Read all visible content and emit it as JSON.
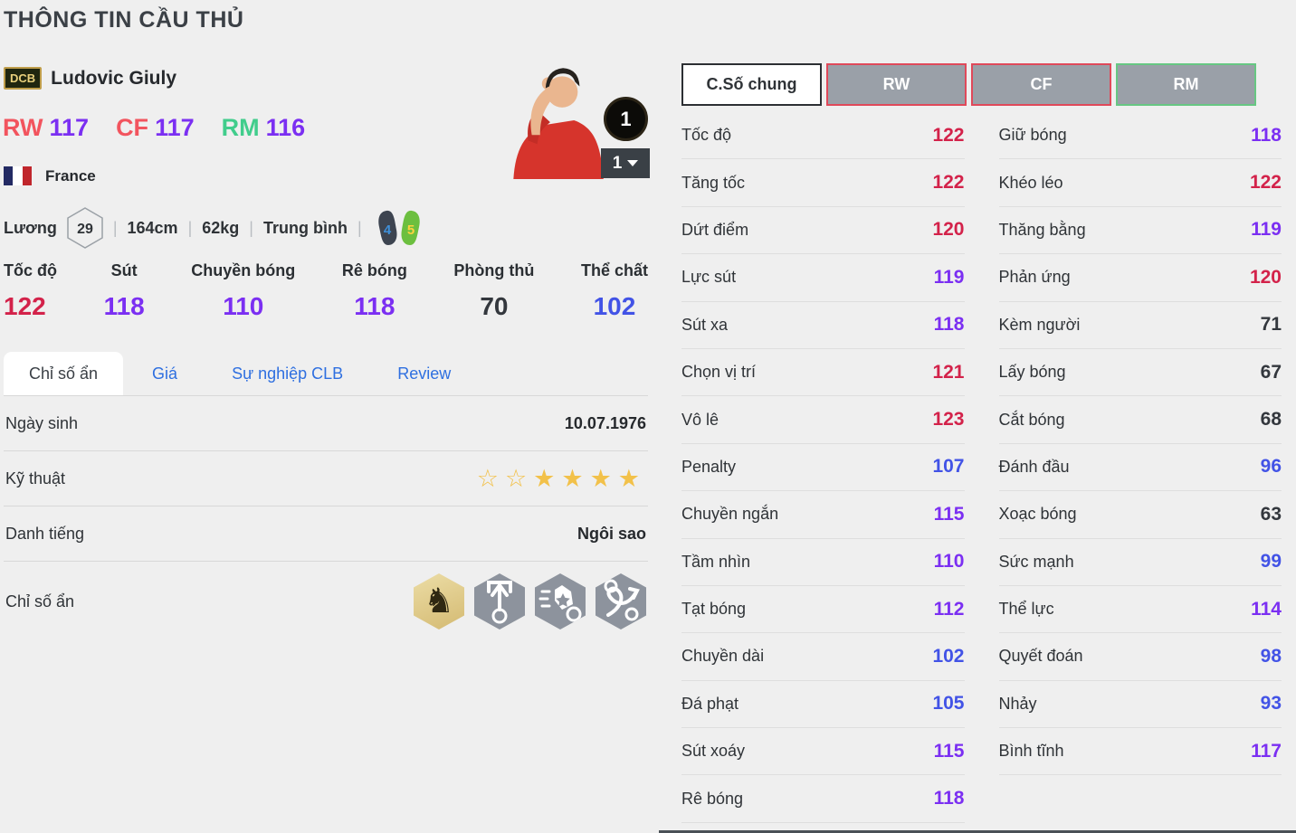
{
  "page": {
    "title": "THÔNG TIN CẦU THỦ"
  },
  "player": {
    "badge": "DCB",
    "name": "Ludovic Giuly",
    "positions": [
      {
        "label": "RW",
        "rating": "117",
        "label_color": "#f2545e"
      },
      {
        "label": "CF",
        "rating": "117",
        "label_color": "#f2545e"
      },
      {
        "label": "RM",
        "rating": "116",
        "label_color": "#41cd8c"
      }
    ],
    "nation": "France",
    "salary_label": "Lương",
    "salary": "29",
    "meta_items": [
      "164cm",
      "62kg",
      "Trung bình"
    ],
    "meta_separator": "|",
    "weak_foot": "4",
    "strong_foot": "5",
    "photo_badge": "1",
    "photo_dropdown": "1"
  },
  "main_stats": [
    {
      "label": "Tốc độ",
      "value": "122"
    },
    {
      "label": "Sút",
      "value": "118"
    },
    {
      "label": "Chuyền bóng",
      "value": "110"
    },
    {
      "label": "Rê bóng",
      "value": "118"
    },
    {
      "label": "Phòng thủ",
      "value": "70"
    },
    {
      "label": "Thể chất",
      "value": "102"
    }
  ],
  "tabs": [
    {
      "label": "Chỉ số ẩn",
      "active": true
    },
    {
      "label": "Giá",
      "active": false
    },
    {
      "label": "Sự nghiệp CLB",
      "active": false
    },
    {
      "label": "Review",
      "active": false
    }
  ],
  "info_rows": [
    {
      "type": "text",
      "label": "Ngày sinh",
      "value": "10.07.1976"
    },
    {
      "type": "stars",
      "label": "Kỹ thuật",
      "stars_empty": 2,
      "stars_filled": 4
    },
    {
      "type": "text",
      "label": "Danh tiếng",
      "value": "Ngôi sao"
    },
    {
      "type": "icons",
      "label": "Chỉ số ẩn",
      "icons": [
        "knight-badge-icon",
        "goal-arrow-badge-icon",
        "boot-star-badge-icon",
        "dribble-paths-badge-icon"
      ]
    }
  ],
  "detail_panel": {
    "buttons": [
      {
        "label": "C.Số chung",
        "style": "active"
      },
      {
        "label": "RW",
        "style": "red"
      },
      {
        "label": "CF",
        "style": "red"
      },
      {
        "label": "RM",
        "style": "green"
      }
    ],
    "left_column": [
      {
        "label": "Tốc độ",
        "value": "122"
      },
      {
        "label": "Tăng tốc",
        "value": "122"
      },
      {
        "label": "Dứt điểm",
        "value": "120"
      },
      {
        "label": "Lực sút",
        "value": "119"
      },
      {
        "label": "Sút xa",
        "value": "118"
      },
      {
        "label": "Chọn vị trí",
        "value": "121"
      },
      {
        "label": "Vô lê",
        "value": "123"
      },
      {
        "label": "Penalty",
        "value": "107"
      },
      {
        "label": "Chuyền ngắn",
        "value": "115"
      },
      {
        "label": "Tầm nhìn",
        "value": "110"
      },
      {
        "label": "Tạt bóng",
        "value": "112"
      },
      {
        "label": "Chuyền dài",
        "value": "102"
      },
      {
        "label": "Đá phạt",
        "value": "105"
      },
      {
        "label": "Sút xoáy",
        "value": "115"
      },
      {
        "label": "Rê bóng",
        "value": "118"
      }
    ],
    "right_column": [
      {
        "label": "Giữ bóng",
        "value": "118"
      },
      {
        "label": "Khéo léo",
        "value": "122"
      },
      {
        "label": "Thăng bằng",
        "value": "119"
      },
      {
        "label": "Phản ứng",
        "value": "120"
      },
      {
        "label": "Kèm người",
        "value": "71"
      },
      {
        "label": "Lấy bóng",
        "value": "67"
      },
      {
        "label": "Cắt bóng",
        "value": "68"
      },
      {
        "label": "Đánh đầu",
        "value": "96"
      },
      {
        "label": "Xoạc bóng",
        "value": "63"
      },
      {
        "label": "Sức mạnh",
        "value": "99"
      },
      {
        "label": "Thể lực",
        "value": "114"
      },
      {
        "label": "Quyết đoán",
        "value": "98"
      },
      {
        "label": "Nhảy",
        "value": "93"
      },
      {
        "label": "Bình tĩnh",
        "value": "117"
      }
    ]
  },
  "colors": {
    "red": "#d3224a",
    "purple": "#7b2ff2",
    "blue": "#4253e6",
    "dark": "#33373d",
    "rating_purple": "#7b2ff2",
    "tab_link": "#2e6fe0",
    "star_gold": "#f2c14a",
    "foot_left": "#3d4450",
    "foot_right": "#6cbf3f"
  }
}
